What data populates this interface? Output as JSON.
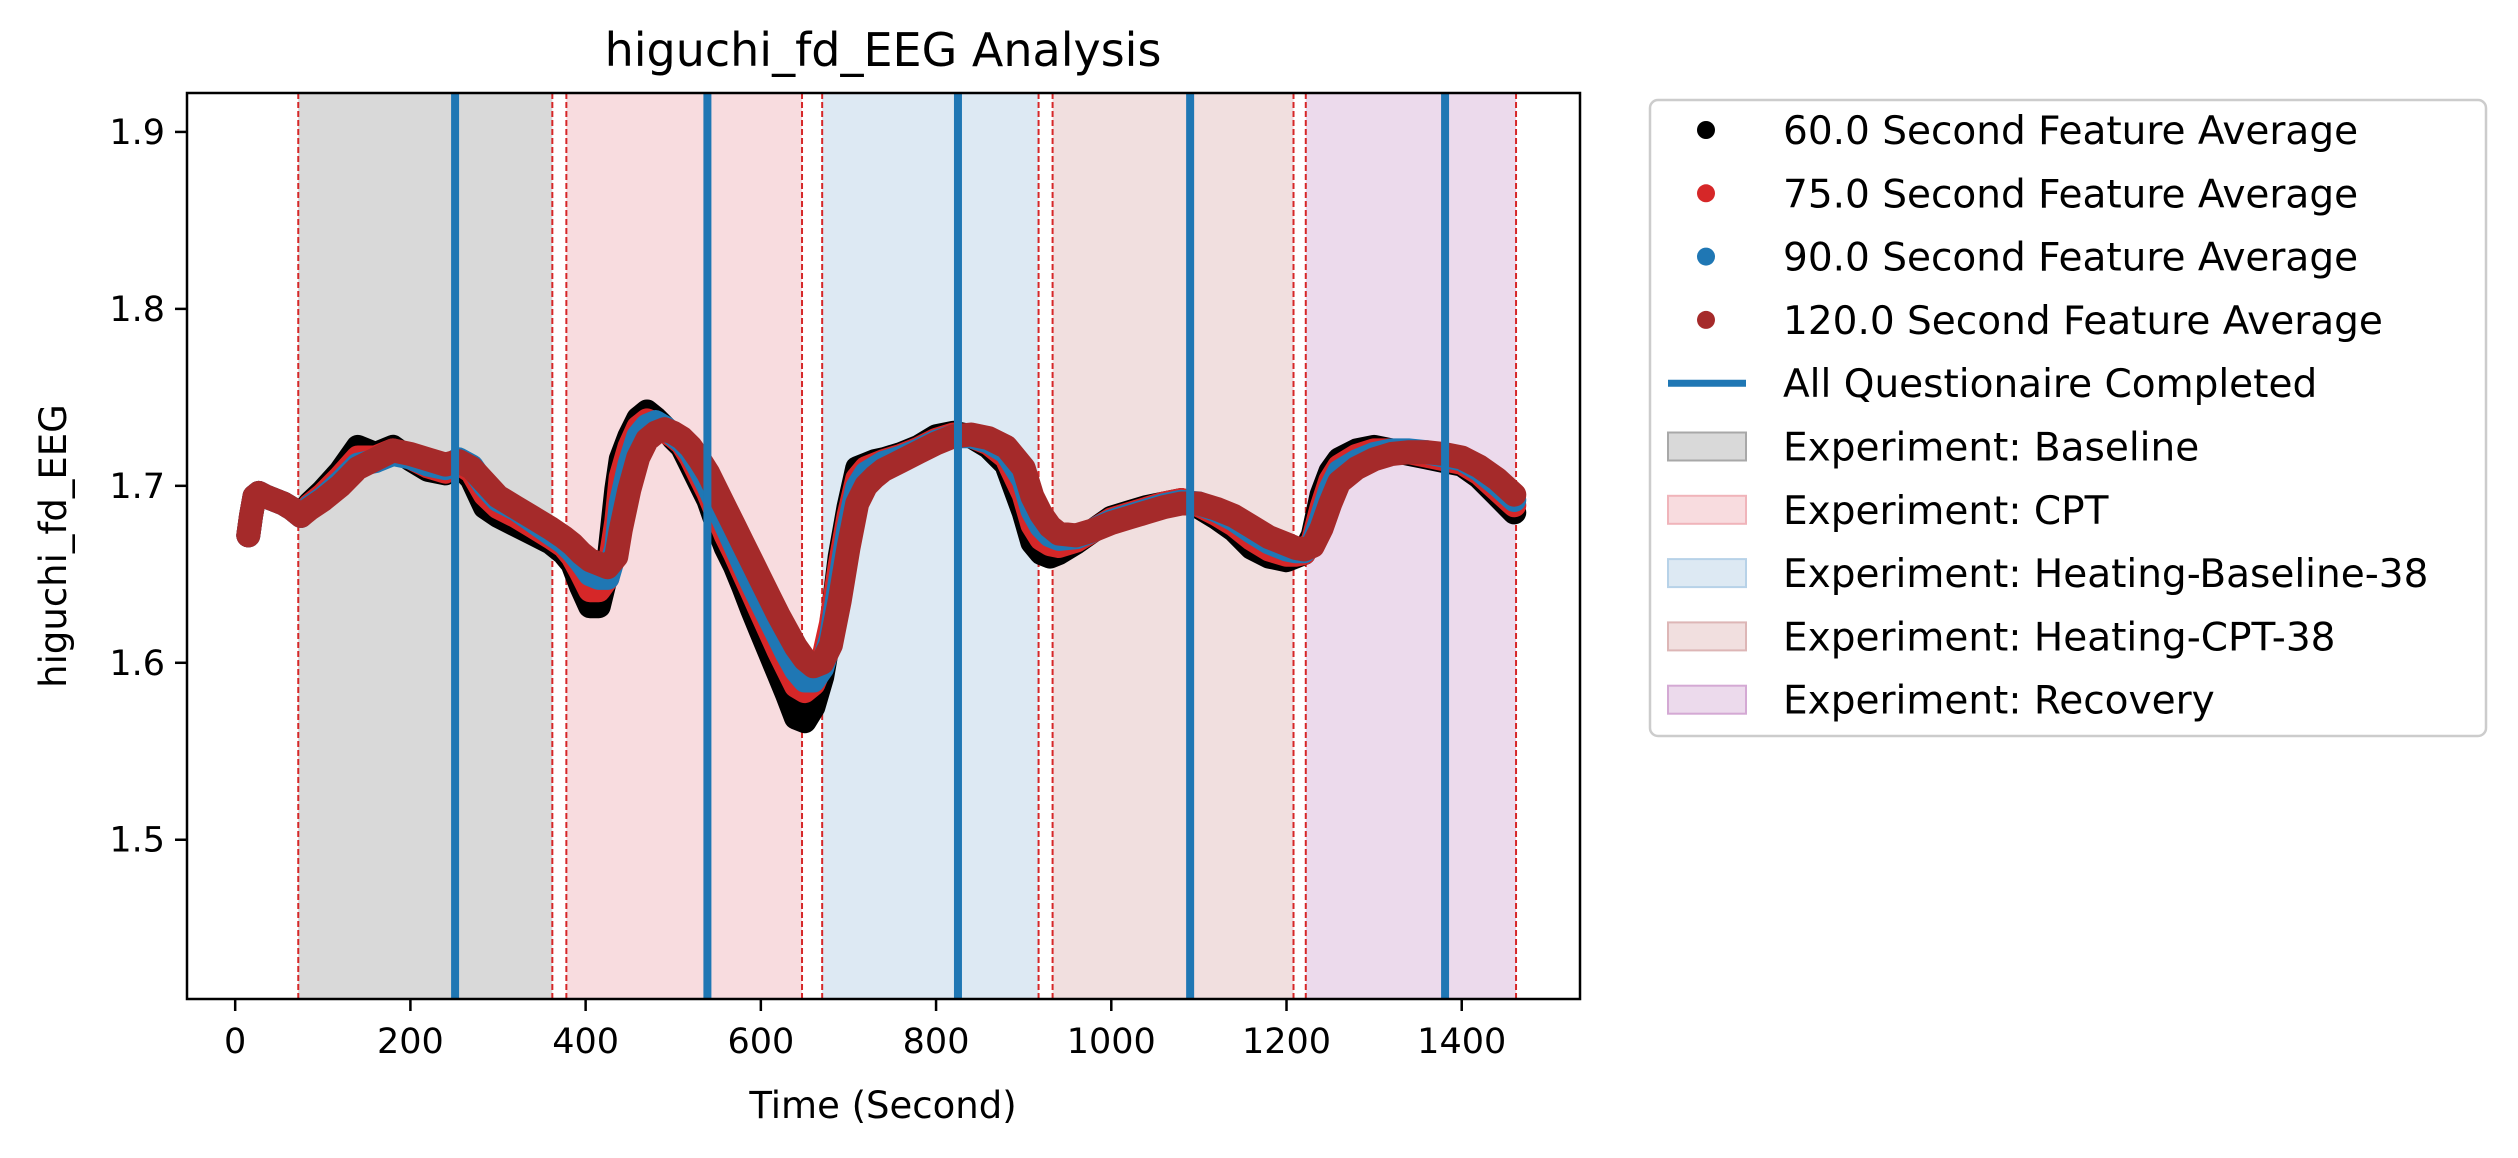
{
  "chart_data": {
    "type": "line",
    "title": "higuchi_fd_EEG Analysis",
    "xlabel": "Time (Second)",
    "ylabel": "higuchi_fd_EEG",
    "xlim": [
      -55,
      1535
    ],
    "ylim": [
      1.41,
      1.922
    ],
    "xticks": [
      0,
      200,
      400,
      600,
      800,
      1000,
      1200,
      1400
    ],
    "xtick_labels": [
      "0",
      "200",
      "400",
      "600",
      "800",
      "1000",
      "1200",
      "1400"
    ],
    "yticks": [
      1.5,
      1.6,
      1.7,
      1.8,
      1.9
    ],
    "ytick_labels": [
      "1.5",
      "1.6",
      "1.7",
      "1.8",
      "1.9"
    ],
    "grid": false,
    "legend_position": "outside-right",
    "phases": [
      {
        "label": "Experiment: Baseline",
        "x0": 72,
        "x1": 362,
        "color": "#d9d9d9",
        "legend_color": "#d9d9d9",
        "legend_edge": "#a8a8a8"
      },
      {
        "label": "Experiment: CPT",
        "x0": 378,
        "x1": 647,
        "color": "#f8dcdf",
        "legend_color": "#f8dcdf",
        "legend_edge": "#f0b4ba"
      },
      {
        "label": "Experiment: Heating-Baseline-38",
        "x0": 670,
        "x1": 917,
        "color": "#dde9f3",
        "legend_color": "#dde9f3",
        "legend_edge": "#b7d2e8"
      },
      {
        "label": "Experiment: Heating-CPT-38",
        "x0": 933,
        "x1": 1208,
        "color": "#f1dfdf",
        "legend_color": "#f1dfdf",
        "legend_edge": "#ddb6b6"
      },
      {
        "label": "Experiment: Recovery",
        "x0": 1222,
        "x1": 1462,
        "color": "#ecdaec",
        "legend_color": "#ecdaec",
        "legend_edge": "#d4a9d4"
      }
    ],
    "boundary_lines": [
      72,
      362,
      378,
      647,
      670,
      917,
      933,
      1208,
      1222,
      1462
    ],
    "boundary_color": "#d62728",
    "questionnaire_lines": [
      251,
      539,
      825,
      1090,
      1381
    ],
    "questionnaire_label": "All Questionaire Completed",
    "questionnaire_color": "#1f77b4",
    "series": [
      {
        "name": "60.0 Second Feature Average",
        "color": "#000000",
        "width": 24,
        "x": [
          15,
          18,
          22,
          27,
          35,
          45,
          55,
          65,
          75,
          85,
          100,
          120,
          140,
          160,
          180,
          200,
          220,
          240,
          255,
          270,
          285,
          300,
          320,
          340,
          360,
          375,
          385,
          395,
          405,
          415,
          425,
          435,
          440,
          450,
          460,
          470,
          480,
          490,
          500,
          510,
          520,
          530,
          540,
          550,
          560,
          570,
          580,
          590,
          600,
          610,
          620,
          630,
          640,
          650,
          660,
          670,
          680,
          690,
          700,
          710,
          720,
          730,
          740,
          760,
          780,
          800,
          820,
          840,
          860,
          880,
          900,
          910,
          920,
          930,
          940,
          960,
          980,
          1000,
          1020,
          1040,
          1060,
          1080,
          1100,
          1120,
          1140,
          1160,
          1180,
          1200,
          1210,
          1220,
          1230,
          1240,
          1250,
          1260,
          1280,
          1300,
          1320,
          1340,
          1360,
          1380,
          1400,
          1420,
          1440,
          1460
        ],
        "y": [
          1.672,
          1.683,
          1.694,
          1.696,
          1.694,
          1.692,
          1.69,
          1.687,
          1.683,
          1.69,
          1.697,
          1.708,
          1.722,
          1.718,
          1.722,
          1.715,
          1.709,
          1.707,
          1.712,
          1.704,
          1.688,
          1.683,
          1.678,
          1.673,
          1.668,
          1.662,
          1.656,
          1.643,
          1.632,
          1.632,
          1.652,
          1.698,
          1.715,
          1.728,
          1.738,
          1.742,
          1.738,
          1.733,
          1.727,
          1.722,
          1.712,
          1.702,
          1.692,
          1.678,
          1.665,
          1.655,
          1.643,
          1.63,
          1.618,
          1.606,
          1.594,
          1.582,
          1.569,
          1.567,
          1.575,
          1.592,
          1.62,
          1.66,
          1.688,
          1.71,
          1.712,
          1.714,
          1.715,
          1.718,
          1.722,
          1.728,
          1.73,
          1.728,
          1.722,
          1.712,
          1.685,
          1.668,
          1.662,
          1.66,
          1.662,
          1.668,
          1.675,
          1.682,
          1.685,
          1.688,
          1.69,
          1.692,
          1.688,
          1.682,
          1.675,
          1.665,
          1.66,
          1.658,
          1.66,
          1.662,
          1.672,
          1.695,
          1.708,
          1.715,
          1.72,
          1.722,
          1.72,
          1.718,
          1.716,
          1.714,
          1.712,
          1.705,
          1.695,
          1.685
        ]
      },
      {
        "name": "75.0 Second Feature Average",
        "color": "#d62728",
        "width": 24,
        "x": [
          15,
          18,
          22,
          27,
          35,
          45,
          55,
          65,
          75,
          85,
          100,
          120,
          140,
          160,
          180,
          200,
          220,
          240,
          255,
          270,
          285,
          300,
          320,
          340,
          360,
          375,
          385,
          395,
          405,
          415,
          425,
          435,
          440,
          450,
          460,
          470,
          480,
          490,
          500,
          510,
          520,
          530,
          540,
          550,
          560,
          570,
          580,
          590,
          600,
          610,
          620,
          630,
          640,
          650,
          660,
          670,
          680,
          690,
          700,
          710,
          720,
          730,
          740,
          760,
          780,
          800,
          820,
          840,
          860,
          880,
          900,
          910,
          920,
          930,
          940,
          960,
          980,
          1000,
          1020,
          1040,
          1060,
          1080,
          1100,
          1120,
          1140,
          1160,
          1180,
          1200,
          1210,
          1220,
          1230,
          1240,
          1250,
          1260,
          1280,
          1300,
          1320,
          1340,
          1360,
          1380,
          1400,
          1420,
          1440,
          1460
        ],
        "y": [
          1.672,
          1.683,
          1.694,
          1.696,
          1.694,
          1.692,
          1.69,
          1.687,
          1.683,
          1.689,
          1.695,
          1.705,
          1.716,
          1.716,
          1.72,
          1.716,
          1.711,
          1.708,
          1.713,
          1.708,
          1.695,
          1.688,
          1.683,
          1.677,
          1.671,
          1.666,
          1.66,
          1.651,
          1.641,
          1.641,
          1.648,
          1.68,
          1.705,
          1.722,
          1.733,
          1.737,
          1.735,
          1.731,
          1.728,
          1.724,
          1.716,
          1.706,
          1.696,
          1.684,
          1.672,
          1.662,
          1.651,
          1.64,
          1.629,
          1.618,
          1.607,
          1.597,
          1.587,
          1.584,
          1.588,
          1.6,
          1.622,
          1.655,
          1.683,
          1.704,
          1.71,
          1.712,
          1.714,
          1.717,
          1.721,
          1.726,
          1.729,
          1.728,
          1.724,
          1.716,
          1.695,
          1.678,
          1.67,
          1.667,
          1.666,
          1.669,
          1.675,
          1.681,
          1.684,
          1.687,
          1.69,
          1.692,
          1.689,
          1.684,
          1.678,
          1.67,
          1.664,
          1.661,
          1.661,
          1.662,
          1.669,
          1.688,
          1.703,
          1.711,
          1.717,
          1.72,
          1.72,
          1.719,
          1.717,
          1.715,
          1.713,
          1.707,
          1.698,
          1.689
        ]
      },
      {
        "name": "90.0 Second Feature Average",
        "color": "#1f77b4",
        "width": 24,
        "x": [
          15,
          18,
          22,
          27,
          35,
          45,
          55,
          65,
          75,
          85,
          100,
          120,
          140,
          160,
          180,
          200,
          220,
          240,
          255,
          270,
          285,
          300,
          320,
          340,
          360,
          375,
          385,
          395,
          405,
          415,
          425,
          435,
          440,
          450,
          460,
          470,
          480,
          490,
          500,
          510,
          520,
          530,
          540,
          550,
          560,
          570,
          580,
          590,
          600,
          610,
          620,
          630,
          640,
          650,
          660,
          670,
          680,
          690,
          700,
          710,
          720,
          730,
          740,
          760,
          780,
          800,
          820,
          840,
          860,
          880,
          900,
          910,
          920,
          930,
          940,
          960,
          980,
          1000,
          1020,
          1040,
          1060,
          1080,
          1100,
          1120,
          1140,
          1160,
          1180,
          1200,
          1210,
          1220,
          1230,
          1240,
          1250,
          1260,
          1280,
          1300,
          1320,
          1340,
          1360,
          1380,
          1400,
          1420,
          1440,
          1460
        ],
        "y": [
          1.672,
          1.683,
          1.694,
          1.696,
          1.694,
          1.692,
          1.69,
          1.687,
          1.683,
          1.688,
          1.693,
          1.702,
          1.712,
          1.714,
          1.718,
          1.716,
          1.712,
          1.71,
          1.715,
          1.711,
          1.7,
          1.692,
          1.687,
          1.68,
          1.673,
          1.668,
          1.663,
          1.657,
          1.65,
          1.648,
          1.648,
          1.665,
          1.69,
          1.712,
          1.728,
          1.734,
          1.736,
          1.733,
          1.729,
          1.725,
          1.719,
          1.71,
          1.7,
          1.689,
          1.678,
          1.667,
          1.656,
          1.645,
          1.635,
          1.625,
          1.615,
          1.605,
          1.596,
          1.59,
          1.59,
          1.597,
          1.614,
          1.645,
          1.676,
          1.699,
          1.707,
          1.71,
          1.713,
          1.716,
          1.72,
          1.725,
          1.728,
          1.728,
          1.725,
          1.719,
          1.703,
          1.686,
          1.677,
          1.672,
          1.67,
          1.671,
          1.675,
          1.68,
          1.683,
          1.686,
          1.689,
          1.691,
          1.69,
          1.686,
          1.681,
          1.674,
          1.668,
          1.664,
          1.663,
          1.663,
          1.667,
          1.682,
          1.698,
          1.708,
          1.714,
          1.718,
          1.72,
          1.72,
          1.719,
          1.717,
          1.715,
          1.709,
          1.701,
          1.692
        ]
      },
      {
        "name": "120.0 Second Feature Average",
        "color": "#a52a2a",
        "width": 24,
        "x": [
          15,
          18,
          22,
          27,
          35,
          45,
          55,
          65,
          75,
          85,
          100,
          120,
          140,
          160,
          180,
          200,
          220,
          240,
          255,
          270,
          285,
          300,
          320,
          340,
          360,
          375,
          385,
          395,
          405,
          415,
          425,
          435,
          440,
          450,
          460,
          470,
          480,
          490,
          500,
          510,
          520,
          530,
          540,
          550,
          560,
          570,
          580,
          590,
          600,
          610,
          620,
          630,
          640,
          650,
          660,
          670,
          680,
          690,
          700,
          710,
          720,
          730,
          740,
          760,
          780,
          800,
          820,
          840,
          860,
          880,
          900,
          910,
          920,
          930,
          940,
          960,
          980,
          1000,
          1020,
          1040,
          1060,
          1080,
          1100,
          1120,
          1140,
          1160,
          1180,
          1200,
          1210,
          1220,
          1230,
          1240,
          1250,
          1260,
          1280,
          1300,
          1320,
          1340,
          1360,
          1380,
          1400,
          1420,
          1440,
          1460
        ],
        "y": [
          1.672,
          1.683,
          1.694,
          1.696,
          1.694,
          1.692,
          1.69,
          1.687,
          1.683,
          1.687,
          1.692,
          1.7,
          1.71,
          1.715,
          1.72,
          1.718,
          1.715,
          1.712,
          1.714,
          1.71,
          1.702,
          1.694,
          1.688,
          1.682,
          1.676,
          1.671,
          1.667,
          1.662,
          1.658,
          1.656,
          1.654,
          1.66,
          1.675,
          1.698,
          1.716,
          1.726,
          1.73,
          1.732,
          1.73,
          1.727,
          1.722,
          1.715,
          1.707,
          1.697,
          1.687,
          1.677,
          1.667,
          1.657,
          1.647,
          1.637,
          1.627,
          1.618,
          1.609,
          1.602,
          1.598,
          1.6,
          1.61,
          1.635,
          1.665,
          1.69,
          1.7,
          1.705,
          1.709,
          1.714,
          1.719,
          1.724,
          1.728,
          1.729,
          1.727,
          1.722,
          1.71,
          1.694,
          1.684,
          1.677,
          1.673,
          1.672,
          1.675,
          1.679,
          1.682,
          1.685,
          1.688,
          1.69,
          1.69,
          1.687,
          1.683,
          1.677,
          1.671,
          1.667,
          1.665,
          1.664,
          1.666,
          1.676,
          1.69,
          1.702,
          1.71,
          1.715,
          1.718,
          1.719,
          1.719,
          1.718,
          1.716,
          1.711,
          1.704,
          1.695
        ]
      }
    ]
  }
}
